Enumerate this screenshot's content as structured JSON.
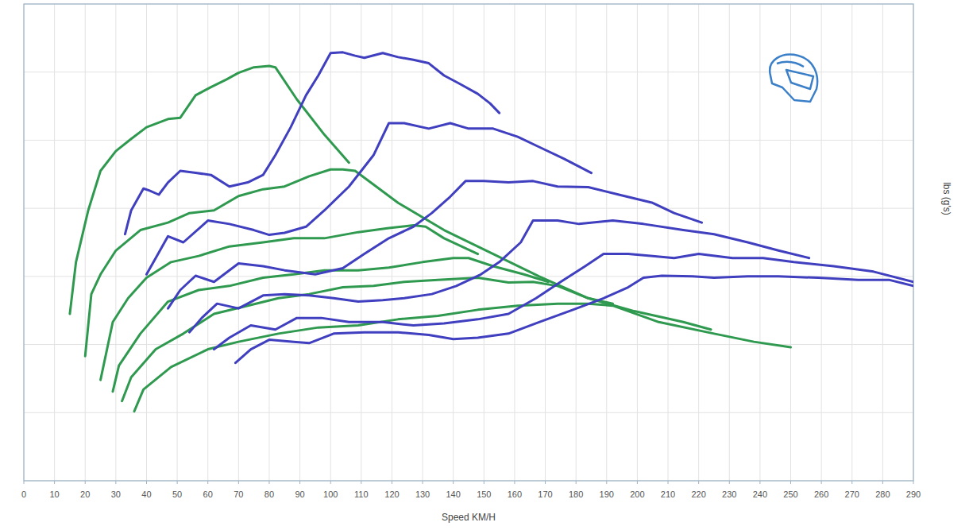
{
  "chart_data": {
    "type": "line",
    "x_label": "Speed KM/H",
    "y_label": "lbs (g's)",
    "xlim": [
      0,
      290
    ],
    "xticks": [
      0,
      10,
      20,
      30,
      40,
      50,
      60,
      70,
      80,
      90,
      100,
      110,
      120,
      130,
      140,
      150,
      160,
      170,
      180,
      190,
      200,
      210,
      220,
      230,
      240,
      250,
      260,
      270,
      280,
      290
    ],
    "ylim": [
      0,
      7
    ],
    "yticks": [
      0,
      1,
      2,
      3,
      4,
      5,
      6,
      7
    ],
    "grid": true,
    "tick_labels": "x",
    "series": [
      {
        "color": "#2f9a4f",
        "x": [
          15,
          17,
          21,
          25,
          30,
          35,
          40,
          47,
          51,
          56,
          61,
          66,
          70,
          75,
          80,
          82,
          89,
          98,
          106
        ],
        "values": [
          2.45,
          3.21,
          3.97,
          4.55,
          4.84,
          5.02,
          5.19,
          5.31,
          5.33,
          5.66,
          5.78,
          5.89,
          5.99,
          6.07,
          6.09,
          6.07,
          5.6,
          5.08,
          4.67
        ]
      },
      {
        "color": "#2f9a4f",
        "x": [
          20,
          22,
          25,
          30,
          38,
          47,
          54,
          62,
          70,
          78,
          85,
          93,
          100,
          104,
          108,
          122,
          137,
          153,
          168,
          184,
          199,
          215,
          224
        ],
        "values": [
          1.83,
          2.74,
          3.03,
          3.38,
          3.68,
          3.79,
          3.93,
          3.97,
          4.18,
          4.28,
          4.32,
          4.47,
          4.57,
          4.57,
          4.55,
          4.08,
          3.68,
          3.33,
          3.0,
          2.68,
          2.49,
          2.33,
          2.22
        ]
      },
      {
        "color": "#2f9a4f",
        "x": [
          25,
          29,
          34,
          40,
          48,
          57,
          67,
          78,
          88,
          98,
          109,
          119,
          127,
          131,
          137,
          148
        ],
        "values": [
          1.48,
          2.33,
          2.68,
          2.98,
          3.21,
          3.3,
          3.44,
          3.5,
          3.56,
          3.56,
          3.65,
          3.71,
          3.75,
          3.73,
          3.56,
          3.33
        ]
      },
      {
        "color": "#2f9a4f",
        "x": [
          29,
          31,
          38,
          47,
          57,
          67,
          78,
          88,
          98,
          109,
          119,
          130,
          140,
          145,
          153,
          163,
          171
        ],
        "values": [
          1.31,
          1.69,
          2.16,
          2.63,
          2.8,
          2.86,
          2.98,
          3.03,
          3.09,
          3.09,
          3.13,
          3.21,
          3.27,
          3.27,
          3.15,
          3.03,
          2.92
        ]
      },
      {
        "color": "#2f9a4f",
        "x": [
          32,
          35,
          43,
          52,
          62,
          73,
          83,
          93,
          104,
          114,
          124,
          135,
          148,
          158,
          166,
          174,
          184,
          192
        ],
        "values": [
          1.17,
          1.52,
          1.93,
          2.16,
          2.45,
          2.57,
          2.68,
          2.74,
          2.84,
          2.86,
          2.92,
          2.95,
          2.98,
          2.91,
          2.92,
          2.86,
          2.68,
          2.6
        ]
      },
      {
        "color": "#2f9a4f",
        "x": [
          36,
          39,
          48,
          60,
          70,
          83,
          96,
          109,
          122,
          135,
          148,
          161,
          174,
          184,
          192,
          207,
          225,
          238,
          250
        ],
        "values": [
          1.02,
          1.34,
          1.67,
          1.93,
          2.04,
          2.16,
          2.25,
          2.28,
          2.37,
          2.42,
          2.51,
          2.57,
          2.6,
          2.6,
          2.57,
          2.33,
          2.16,
          2.04,
          1.96
        ]
      },
      {
        "color": "#3f3fbf",
        "x": [
          33,
          35,
          39,
          41,
          44,
          47,
          51,
          56,
          61,
          67,
          73,
          78,
          82,
          87,
          92,
          96,
          100,
          104,
          108,
          111,
          117,
          122,
          127,
          132,
          137,
          142,
          148,
          152,
          155
        ],
        "values": [
          3.62,
          3.97,
          4.29,
          4.26,
          4.2,
          4.38,
          4.55,
          4.52,
          4.49,
          4.32,
          4.38,
          4.49,
          4.78,
          5.19,
          5.66,
          5.95,
          6.28,
          6.29,
          6.24,
          6.21,
          6.28,
          6.22,
          6.18,
          6.13,
          5.95,
          5.83,
          5.68,
          5.54,
          5.4
        ]
      },
      {
        "color": "#3f3fbf",
        "x": [
          40,
          43,
          47,
          52,
          60,
          67,
          75,
          80,
          85,
          92,
          98,
          106,
          114,
          119,
          124,
          132,
          139,
          145,
          153,
          161,
          168,
          176,
          185
        ],
        "values": [
          3.03,
          3.27,
          3.59,
          3.5,
          3.82,
          3.77,
          3.68,
          3.61,
          3.64,
          3.73,
          3.97,
          4.32,
          4.78,
          5.25,
          5.25,
          5.17,
          5.25,
          5.17,
          5.17,
          5.05,
          4.9,
          4.73,
          4.52
        ]
      },
      {
        "color": "#3f3fbf",
        "x": [
          47,
          51,
          56,
          62,
          70,
          78,
          85,
          95,
          104,
          111,
          119,
          127,
          133,
          139,
          144,
          150,
          158,
          166,
          174,
          184,
          194,
          205,
          212,
          221
        ],
        "values": [
          2.53,
          2.8,
          3.01,
          2.92,
          3.19,
          3.15,
          3.09,
          3.03,
          3.12,
          3.33,
          3.56,
          3.73,
          3.93,
          4.17,
          4.4,
          4.4,
          4.38,
          4.4,
          4.32,
          4.31,
          4.2,
          4.08,
          3.93,
          3.79
        ]
      },
      {
        "color": "#3f3fbf",
        "x": [
          54,
          58,
          63,
          70,
          78,
          85,
          93,
          101,
          109,
          117,
          124,
          133,
          141,
          149,
          155,
          162,
          166,
          174,
          181,
          192,
          202,
          215,
          225,
          236,
          246,
          256
        ],
        "values": [
          2.18,
          2.39,
          2.6,
          2.53,
          2.72,
          2.74,
          2.72,
          2.68,
          2.63,
          2.65,
          2.68,
          2.74,
          2.86,
          3.03,
          3.21,
          3.5,
          3.82,
          3.82,
          3.77,
          3.82,
          3.77,
          3.68,
          3.62,
          3.5,
          3.38,
          3.27
        ]
      },
      {
        "color": "#3f3fbf",
        "x": [
          62,
          67,
          74,
          82,
          89,
          97,
          106,
          117,
          127,
          137,
          148,
          158,
          167,
          175,
          183,
          189,
          197,
          205,
          212,
          220,
          231,
          241,
          251,
          264,
          277,
          290
        ],
        "values": [
          1.93,
          2.1,
          2.28,
          2.22,
          2.39,
          2.39,
          2.33,
          2.33,
          2.28,
          2.31,
          2.37,
          2.45,
          2.68,
          2.92,
          3.15,
          3.33,
          3.33,
          3.3,
          3.27,
          3.33,
          3.27,
          3.27,
          3.21,
          3.15,
          3.07,
          2.92
        ]
      },
      {
        "color": "#3f3fbf",
        "x": [
          69,
          74,
          80,
          88,
          93,
          101,
          111,
          122,
          132,
          140,
          148,
          158,
          168,
          179,
          189,
          197,
          202,
          208,
          218,
          225,
          236,
          246,
          259,
          272,
          282,
          290
        ],
        "values": [
          1.73,
          1.93,
          2.07,
          2.04,
          2.02,
          2.16,
          2.18,
          2.18,
          2.14,
          2.08,
          2.1,
          2.16,
          2.33,
          2.51,
          2.68,
          2.84,
          2.98,
          3.01,
          3.0,
          2.98,
          3.0,
          3.0,
          2.98,
          2.95,
          2.95,
          2.86
        ]
      }
    ]
  }
}
